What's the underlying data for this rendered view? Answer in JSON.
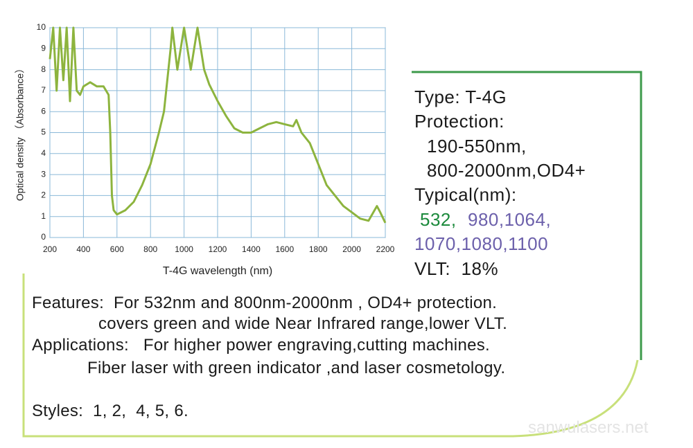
{
  "chart_data": {
    "type": "line",
    "x_label": "T-4G wavelength  (nm)",
    "y_label": "Optical density （Absorbance）",
    "color": "#8db43e",
    "x": [
      200,
      220,
      240,
      260,
      280,
      300,
      320,
      340,
      360,
      380,
      400,
      440,
      480,
      520,
      550,
      560,
      570,
      580,
      600,
      650,
      700,
      750,
      800,
      850,
      880,
      900,
      920,
      930,
      960,
      1000,
      1040,
      1080,
      1120,
      1150,
      1200,
      1250,
      1300,
      1350,
      1400,
      1450,
      1500,
      1550,
      1600,
      1650,
      1670,
      1700,
      1750,
      1800,
      1850,
      1900,
      1950,
      2000,
      2050,
      2100,
      2150,
      2170,
      2200
    ],
    "values": [
      8.5,
      10,
      7,
      10,
      7.5,
      10,
      6.5,
      10,
      7,
      6.8,
      7.2,
      7.4,
      7.2,
      7.2,
      6.8,
      5,
      2,
      1.3,
      1.1,
      1.3,
      1.7,
      2.5,
      3.5,
      5,
      6,
      7.5,
      9,
      10,
      8,
      10,
      8,
      10,
      8,
      7.3,
      6.5,
      5.8,
      5.2,
      5.0,
      5.0,
      5.2,
      5.4,
      5.5,
      5.4,
      5.3,
      5.6,
      5.0,
      4.5,
      3.5,
      2.5,
      2.0,
      1.5,
      1.2,
      0.9,
      0.8,
      1.5,
      1.2,
      0.7
    ],
    "xlim": [
      200,
      2200
    ],
    "xticks": [
      200,
      400,
      600,
      800,
      1000,
      1200,
      1400,
      1600,
      1800,
      2000,
      2200
    ],
    "ylim": [
      0,
      10
    ],
    "yticks": [
      0,
      1,
      2,
      3,
      4,
      5,
      6,
      7,
      8,
      9,
      10
    ],
    "grid": true
  },
  "specs": {
    "lines": [
      "Type: T-4G",
      "Protection:",
      "190-550nm,",
      "800-2000nm,OD4+",
      "Typical(nm):"
    ],
    "typical_green": "532,",
    "typical_purple_1": "980,1064,",
    "typical_purple_2": "1070,1080,1100",
    "vlt": "VLT:  18%"
  },
  "description": {
    "lines": [
      "Features:  For 532nm and 800nm-2000nm , OD4+ protection.",
      "covers green and wide Near Infrared range,lower VLT.",
      "Applications:   For higher power engraving,cutting machines.",
      "Fiber laser with green indicator ,and laser cosmetology.",
      "Styles:  1, 2,  4, 5, 6."
    ]
  },
  "watermark": "sanwulasers.net"
}
